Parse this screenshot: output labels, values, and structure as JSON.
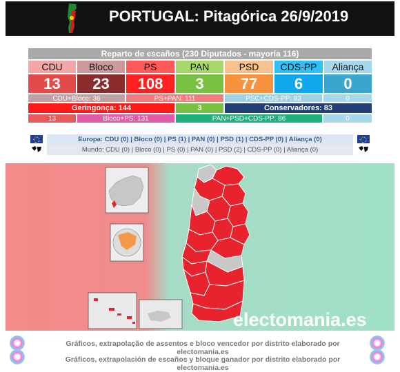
{
  "header": {
    "title": "PORTUGAL: Pitagórica 26/9/2019"
  },
  "table": {
    "caption": "Reparto de escaños (230 Diputados - mayoría 116)",
    "parties": [
      {
        "name": "CDU",
        "seats": "13",
        "label_bg": "#f3a6a6",
        "seat_bg": "#e34a4a"
      },
      {
        "name": "Bloco",
        "seats": "23",
        "label_bg": "#cc9a9a",
        "seat_bg": "#8b2c2c"
      },
      {
        "name": "PS",
        "seats": "108",
        "label_bg": "#ff5b5b",
        "seat_bg": "#ff2020"
      },
      {
        "name": "PAN",
        "seats": "3",
        "label_bg": "#a8d86b",
        "seat_bg": "#7ac143"
      },
      {
        "name": "PSD",
        "seats": "77",
        "label_bg": "#f7c290",
        "seat_bg": "#f7933e"
      },
      {
        "name": "CDS-PP",
        "seats": "6",
        "label_bg": "#2fc0f5",
        "seat_bg": "#12a8ee"
      },
      {
        "name": "Aliança",
        "seats": "0",
        "label_bg": "#a6d8ec",
        "seat_bg": "#3aa6cf"
      }
    ],
    "row_combo1": {
      "cdu_bloco": "CDU+Bloco: 36",
      "ps_pan": "PS+PAN: 111",
      "psd_cds": "PSC+CDS-PP: 83",
      "alianca": "0"
    },
    "row_blocks": {
      "geringonca": "Geringonça: 144",
      "pan": "3",
      "conservadores": "Conservadores: 83"
    },
    "row_combo2": {
      "cdu": "13",
      "bloco_ps": "Bloco+PS: 131",
      "pan_psd": "PAN+PSD+CDS-PP: 86",
      "alianca": "0"
    }
  },
  "europe": {
    "europa": "Europa: CDU (0) | Bloco (0) | PS (1) | PAN (0) | PSD (1) | CDS-PP (0) | Aliança (0)",
    "mundo": "Mundo: CDU (0) | Bloco (0) | PS (0) | PAN (0) | PSD (2) | CDS-PP (0) | Aliança (0)"
  },
  "map": {
    "watermark": "electomania.es"
  },
  "footer": {
    "line_pt": "Gráficos, extrapolação de assentos e bloco vencedor por distrito elaborado por electomania.es",
    "line_es": "Gráficos, extrapolación de escaños y bloque ganador por distrito elaborado por electomania.es"
  },
  "colors": {
    "left_bg": "#f48a8a",
    "right_bg": "#9fe0c4",
    "district_red": "#e8232e",
    "district_grey": "#c8c8c8"
  }
}
